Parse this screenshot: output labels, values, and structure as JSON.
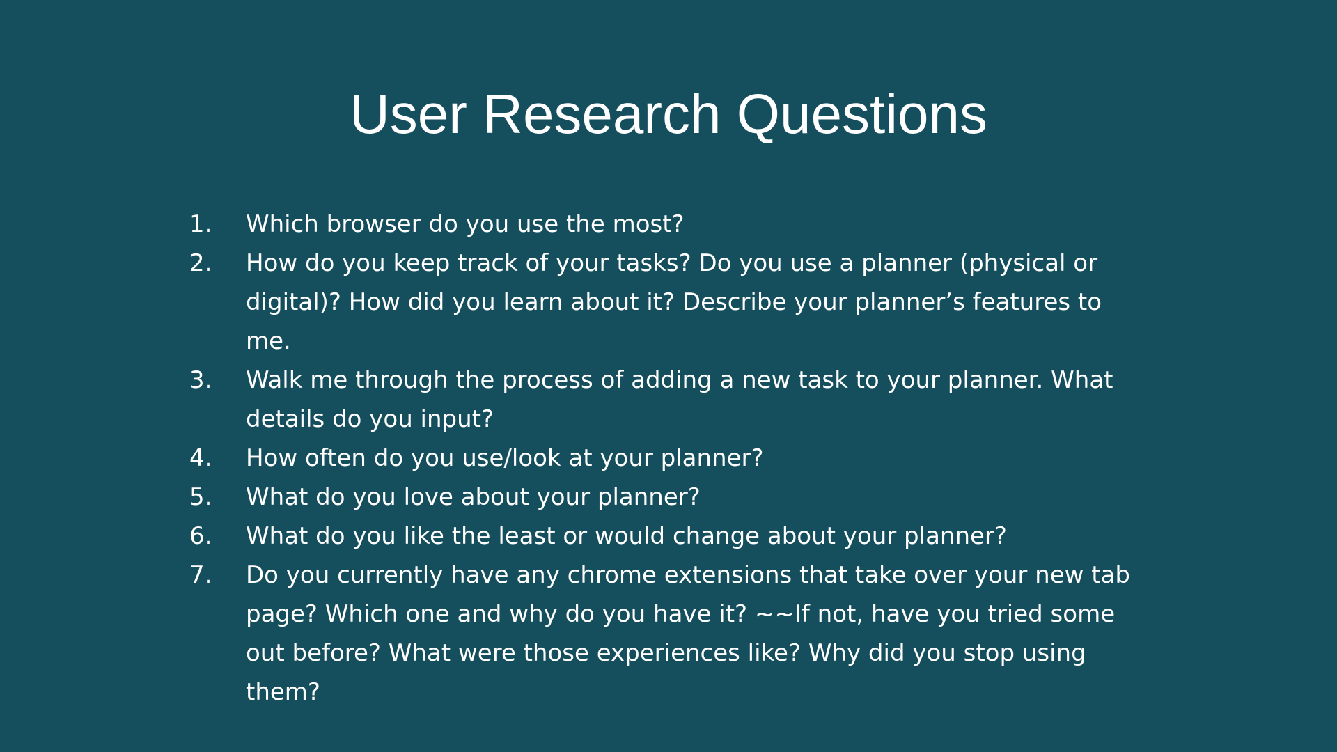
{
  "slide": {
    "background_color": "#154e5c",
    "text_color": "#ffffff",
    "title": "User Research Questions",
    "questions": [
      {
        "number": "1.",
        "text": "Which browser do you use the most?"
      },
      {
        "number": "2.",
        "text": "How do you keep track of your tasks? Do you use a planner (physical or digital)? How did you learn about it? Describe your planner’s features to me."
      },
      {
        "number": "3.",
        "text": "Walk me through the process of adding a new task to your planner. What details do you input?"
      },
      {
        "number": "4.",
        "text": "How often do you use/look at your planner?"
      },
      {
        "number": "5.",
        "text": "What do you love about your planner?"
      },
      {
        "number": "6.",
        "text": "What do you like the least or would change about your planner?"
      },
      {
        "number": "7.",
        "text": "Do you currently have any chrome extensions that take over your new tab page? Which one and why do you have it? ~~If not, have you tried some out before? What were those experiences like? Why did you stop using them?"
      }
    ]
  }
}
